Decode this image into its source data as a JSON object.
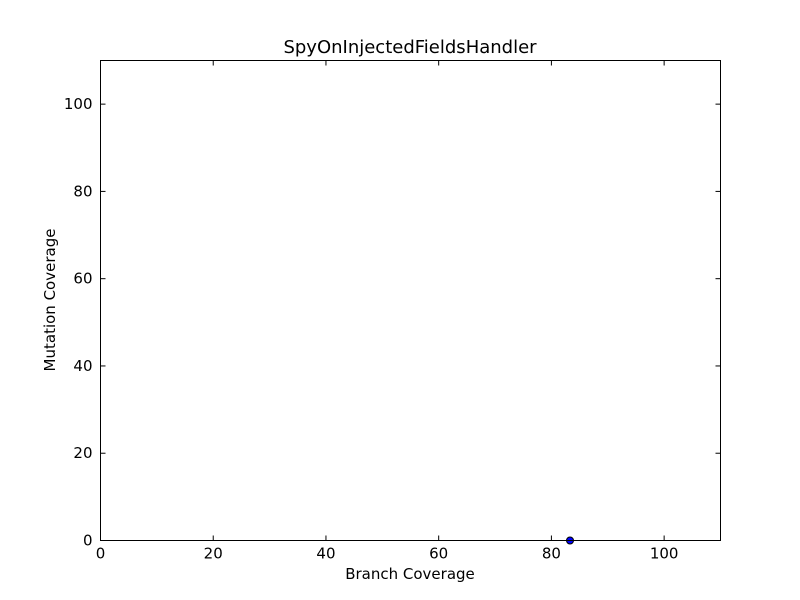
{
  "chart_data": {
    "type": "scatter",
    "title": "SpyOnInjectedFieldsHandler",
    "xlabel": "Branch Coverage",
    "ylabel": "Mutation Coverage",
    "xlim": [
      0,
      110
    ],
    "ylim": [
      0,
      110
    ],
    "xticks": [
      0,
      20,
      40,
      60,
      80,
      100
    ],
    "yticks": [
      0,
      20,
      40,
      60,
      80,
      100
    ],
    "grid": false,
    "points": [
      {
        "x": 83.3,
        "y": 0
      }
    ],
    "colors": {
      "marker_fill": "#0000ff",
      "marker_edge": "#000000",
      "axes": "#000000",
      "background": "#ffffff"
    }
  }
}
